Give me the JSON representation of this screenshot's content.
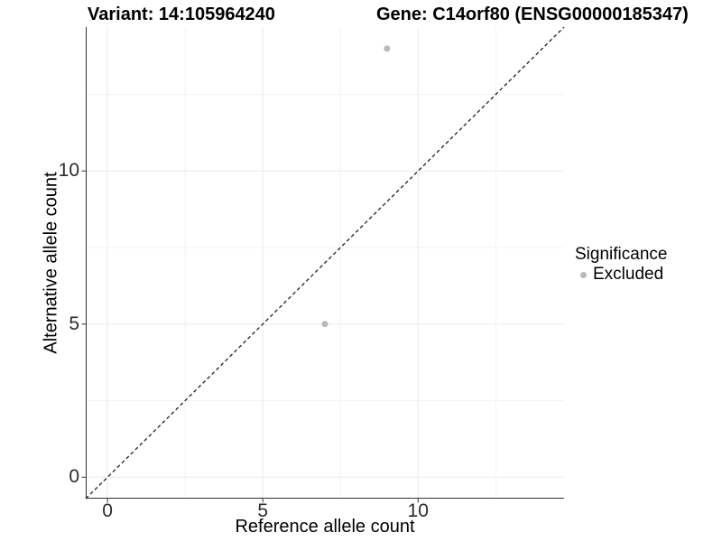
{
  "titles": {
    "variant": "Variant: 14:105964240",
    "gene": "Gene: C14orf80 (ENSG00000185347)"
  },
  "axes": {
    "x_label": "Reference allele count",
    "y_label": "Alternative allele count"
  },
  "legend": {
    "title": "Significance",
    "items": [
      {
        "label": "Excluded",
        "color": "#b9b9b9"
      }
    ]
  },
  "chart_data": {
    "type": "scatter",
    "title": "Variant: 14:105964240 — Gene: C14orf80 (ENSG00000185347)",
    "xlabel": "Reference allele count",
    "ylabel": "Alternative allele count",
    "xlim": [
      -0.7,
      14.7
    ],
    "ylim": [
      -0.7,
      14.7
    ],
    "x_major_ticks": [
      0,
      5,
      10
    ],
    "y_major_ticks": [
      0,
      5,
      10
    ],
    "x_minor_ticks": [
      2.5,
      7.5,
      12.5
    ],
    "y_minor_ticks": [
      2.5,
      7.5,
      12.5
    ],
    "grid": true,
    "legend_position": "right",
    "series": [
      {
        "name": "Excluded",
        "color": "#b9b9b9",
        "points": [
          {
            "x": 7,
            "y": 5
          },
          {
            "x": 9,
            "y": 14
          }
        ]
      }
    ],
    "reference_line": {
      "type": "identity",
      "slope": 1,
      "intercept": 0,
      "style": "dashed",
      "color": "#1f1f1f"
    }
  },
  "colors": {
    "background": "#ffffff",
    "grid_major": "#ebebeb",
    "grid_minor": "#f3f3f3",
    "axis_line": "#333333",
    "point": "#b9b9b9",
    "dashed_line": "#1f1f1f",
    "tick_text": "#2b2b2b"
  }
}
